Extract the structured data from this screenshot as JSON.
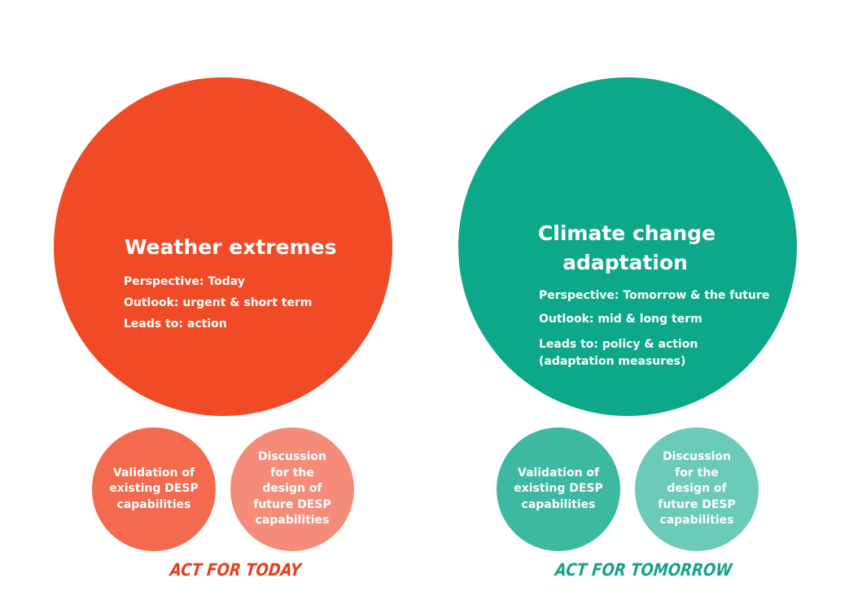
{
  "colors": {
    "red_big": "#f04b26",
    "red_small_1": "#f36a4f",
    "red_small_2": "#f58c7a",
    "teal_big": "#0da88a",
    "teal_small_1": "#3db9a1",
    "teal_small_2": "#6ccab8",
    "red_text": "#e63e1e",
    "teal_text": "#14a386"
  },
  "left": {
    "title": "Weather extremes",
    "perspective": "Perspective: Today",
    "outlook": "Outlook: urgent & short term",
    "leads_to": "Leads to: action",
    "small_1": "Validation of existing DESP capabilities",
    "small_2": "Discussion for the design of future DESP capabilities",
    "footer": "ACT FOR TODAY"
  },
  "right": {
    "title_line1": "Climate change",
    "title_line2": "adaptation",
    "perspective": "Perspective: Tomorrow & the future",
    "outlook": "Outlook: mid & long term",
    "leads_to": "Leads to: policy & action (adaptation measures)",
    "small_1": "Validation of existing DESP capabilities",
    "small_2": "Discussion for the design of future DESP capabilities",
    "footer": "ACT FOR TOMORROW"
  }
}
